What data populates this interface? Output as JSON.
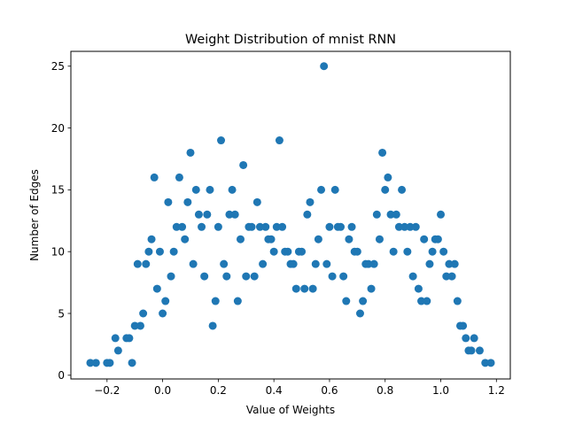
{
  "chart_data": {
    "type": "scatter",
    "title": "Weight Distribution of mnist RNN",
    "xlabel": "Value of Weights",
    "ylabel": "Number of Edges",
    "xlim": [
      -0.33,
      1.25
    ],
    "ylim": [
      -0.3,
      26.2
    ],
    "xticks": [
      -0.2,
      0.0,
      0.2,
      0.4,
      0.6,
      0.8,
      1.0,
      1.2
    ],
    "xtick_labels": [
      "−0.2",
      "0.0",
      "0.2",
      "0.4",
      "0.6",
      "0.8",
      "1.0",
      "1.2"
    ],
    "yticks": [
      0,
      5,
      10,
      15,
      20,
      25
    ],
    "ytick_labels": [
      "0",
      "5",
      "10",
      "15",
      "20",
      "25"
    ],
    "grid": false,
    "marker_color": "#1f77b4",
    "x": [
      -0.26,
      -0.24,
      -0.2,
      -0.19,
      -0.17,
      -0.16,
      -0.13,
      -0.12,
      -0.11,
      -0.1,
      -0.09,
      -0.08,
      -0.07,
      -0.06,
      -0.05,
      -0.04,
      -0.03,
      -0.02,
      -0.01,
      0.0,
      0.01,
      0.02,
      0.03,
      0.04,
      0.05,
      0.06,
      0.07,
      0.08,
      0.09,
      0.1,
      0.11,
      0.12,
      0.13,
      0.14,
      0.15,
      0.16,
      0.17,
      0.18,
      0.19,
      0.2,
      0.21,
      0.22,
      0.23,
      0.24,
      0.25,
      0.26,
      0.27,
      0.28,
      0.29,
      0.3,
      0.31,
      0.32,
      0.33,
      0.34,
      0.35,
      0.36,
      0.37,
      0.38,
      0.39,
      0.4,
      0.41,
      0.42,
      0.43,
      0.44,
      0.45,
      0.46,
      0.47,
      0.48,
      0.49,
      0.5,
      0.51,
      0.52,
      0.53,
      0.54,
      0.55,
      0.56,
      0.57,
      0.58,
      0.59,
      0.6,
      0.61,
      0.62,
      0.63,
      0.64,
      0.65,
      0.66,
      0.67,
      0.68,
      0.69,
      0.7,
      0.71,
      0.72,
      0.73,
      0.74,
      0.75,
      0.76,
      0.77,
      0.78,
      0.79,
      0.8,
      0.81,
      0.82,
      0.83,
      0.84,
      0.85,
      0.86,
      0.87,
      0.88,
      0.89,
      0.9,
      0.91,
      0.92,
      0.93,
      0.94,
      0.95,
      0.96,
      0.97,
      0.98,
      0.99,
      1.0,
      1.01,
      1.02,
      1.03,
      1.04,
      1.05,
      1.06,
      1.07,
      1.08,
      1.09,
      1.1,
      1.11,
      1.12,
      1.14,
      1.16,
      1.18
    ],
    "y": [
      1,
      1,
      1,
      1,
      3,
      2,
      3,
      3,
      1,
      4,
      9,
      4,
      5,
      9,
      10,
      11,
      16,
      7,
      10,
      5,
      6,
      14,
      8,
      10,
      12,
      16,
      12,
      11,
      14,
      18,
      9,
      15,
      13,
      12,
      8,
      13,
      15,
      4,
      6,
      12,
      19,
      9,
      8,
      13,
      15,
      13,
      6,
      11,
      17,
      8,
      12,
      12,
      8,
      14,
      12,
      9,
      12,
      11,
      11,
      10,
      12,
      19,
      12,
      10,
      10,
      9,
      9,
      7,
      10,
      10,
      7,
      13,
      14,
      7,
      9,
      11,
      15,
      25,
      9,
      12,
      8,
      15,
      12,
      12,
      8,
      6,
      11,
      12,
      10,
      10,
      5,
      6,
      9,
      9,
      7,
      9,
      13,
      11,
      18,
      15,
      16,
      13,
      10,
      13,
      12,
      15,
      12,
      10,
      12,
      8,
      12,
      7,
      6,
      11,
      6,
      9,
      10,
      11,
      11,
      13,
      10,
      8,
      9,
      8,
      9,
      6,
      4,
      4,
      3,
      2,
      2,
      3,
      2,
      1,
      1
    ]
  }
}
